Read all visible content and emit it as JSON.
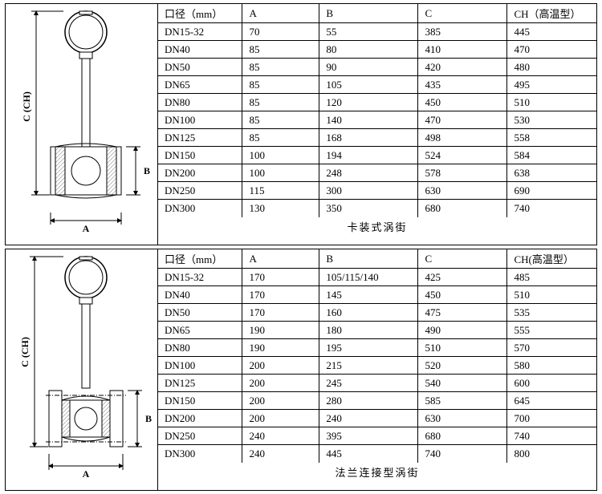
{
  "panel1": {
    "caption": "卡装式涡街",
    "header": [
      "口径（mm）",
      "A",
      "B",
      "C",
      "CH（高温型）"
    ],
    "rows": [
      [
        "DN15-32",
        "70",
        "55",
        "385",
        "445"
      ],
      [
        "DN40",
        "85",
        "80",
        "410",
        "470"
      ],
      [
        "DN50",
        "85",
        "90",
        "420",
        "480"
      ],
      [
        "DN65",
        "85",
        "105",
        "435",
        "495"
      ],
      [
        "DN80",
        "85",
        "120",
        "450",
        "510"
      ],
      [
        "DN100",
        "85",
        "140",
        "470",
        "530"
      ],
      [
        "DN125",
        "85",
        "168",
        "498",
        "558"
      ],
      [
        "DN150",
        "100",
        "194",
        "524",
        "584"
      ],
      [
        "DN200",
        "100",
        "248",
        "578",
        "638"
      ],
      [
        "DN250",
        "115",
        "300",
        "630",
        "690"
      ],
      [
        "DN300",
        "130",
        "350",
        "680",
        "740"
      ]
    ],
    "diagram": {
      "label_A": "A",
      "label_B": "B",
      "label_C": "C (CH)",
      "stroke": "#000000",
      "hatch": "#888888"
    }
  },
  "panel2": {
    "caption": "法兰连接型涡街",
    "header": [
      "口径（mm）",
      "A",
      "B",
      "C",
      "CH(高温型）"
    ],
    "rows": [
      [
        "DN15-32",
        "170",
        "105/115/140",
        "425",
        "485"
      ],
      [
        "DN40",
        "170",
        "145",
        "450",
        "510"
      ],
      [
        "DN50",
        "170",
        "160",
        "475",
        "535"
      ],
      [
        "DN65",
        "190",
        "180",
        "490",
        "555"
      ],
      [
        "DN80",
        "190",
        "195",
        "510",
        "570"
      ],
      [
        "DN100",
        "200",
        "215",
        "520",
        "580"
      ],
      [
        "DN125",
        "200",
        "245",
        "540",
        "600"
      ],
      [
        "DN150",
        "200",
        "280",
        "585",
        "645"
      ],
      [
        "DN200",
        "200",
        "240",
        "630",
        "700"
      ],
      [
        "DN250",
        "240",
        "395",
        "680",
        "740"
      ],
      [
        "DN300",
        "240",
        "445",
        "740",
        "800"
      ]
    ],
    "diagram": {
      "label_A": "A",
      "label_B": "B",
      "label_C": "C (CH)",
      "stroke": "#000000",
      "hatch": "#888888"
    }
  }
}
